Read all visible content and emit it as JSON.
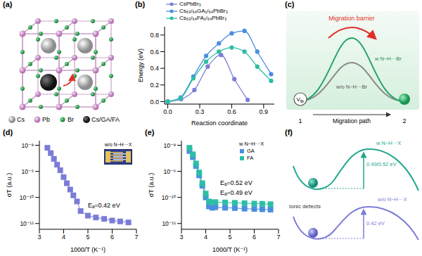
{
  "figure_a": {
    "panel_label": "(a)",
    "atoms": [
      "Cs",
      "Pb",
      "Br",
      "Cs/GA/FA"
    ]
  },
  "chart_data": [
    {
      "panel_label": "(b)",
      "type": "line",
      "x_label": "Reaction coordinate",
      "y_label": "Energy (eV)",
      "xlim": [
        -0.03,
        1.0
      ],
      "xticks": [
        {
          "value": 0,
          "label": "0.0"
        },
        0.3,
        0.6,
        0.9
      ],
      "ylim": [
        -0.03,
        0.9
      ],
      "yticks": [
        {
          "value": 0,
          "label": "0.0"
        },
        0.2,
        0.4,
        0.6,
        0.8
      ],
      "legend": "top",
      "marker": "circle",
      "series": [
        {
          "name": "CsPbBr₃",
          "color": "#7b7cd8",
          "x": [
            0,
            0.125,
            0.25,
            0.375,
            0.5,
            0.625,
            0.75
          ],
          "values": [
            0,
            0.03,
            0.14,
            0.42,
            0.56,
            0.27,
            0.02
          ]
        },
        {
          "name": "Cs₆₃/₆₄GA₁/₆₄PbBr₃",
          "color": "#4b8ee0",
          "x": [
            0,
            0.12,
            0.24,
            0.36,
            0.48,
            0.6,
            0.72,
            0.84,
            0.97
          ],
          "values": [
            0,
            0.05,
            0.3,
            0.55,
            0.7,
            0.82,
            0.85,
            0.6,
            0.33
          ]
        },
        {
          "name": "Cs₆₃/₆₄FA₁/₆₄PbBr₃",
          "color": "#2cbfa5",
          "x": [
            0,
            0.12,
            0.24,
            0.36,
            0.48,
            0.6,
            0.72,
            0.84,
            0.97
          ],
          "values": [
            0,
            0.04,
            0.28,
            0.48,
            0.6,
            0.65,
            0.6,
            0.42,
            0.25
          ]
        }
      ]
    },
    {
      "panel_label": "(d)",
      "type": "scatter",
      "marker": "square",
      "line_style": "solid",
      "log": "y",
      "x_label": "1000/T (K⁻¹)",
      "y_label": "σT (a.u.)",
      "xlim": [
        3,
        7
      ],
      "xticks": [
        3,
        4,
        5,
        6,
        7
      ],
      "ylim": [
        6e-12,
        1.5e-08
      ],
      "yticks": [
        {
          "value": 1e-11,
          "label": "10⁻¹¹"
        },
        {
          "value": 1e-10,
          "label": "10⁻¹⁰"
        },
        {
          "value": 1e-09,
          "label": "10⁻⁹"
        },
        {
          "value": 1e-08,
          "label": "10⁻⁸"
        }
      ],
      "inset_label": "w/o N−H···X",
      "annotations": [
        "Eₐ=0.42 eV"
      ],
      "series": [
        {
          "color": "#7b7cd8",
          "x": [
            3.33,
            3.47,
            3.6,
            3.73,
            3.86,
            4.0,
            4.13,
            4.27,
            4.4,
            4.55,
            4.7,
            5.0,
            5.33,
            5.67,
            6.0,
            6.33,
            6.67
          ],
          "values": [
            8e-09,
            5e-09,
            3e-09,
            1.8e-09,
            1.1e-09,
            6e-10,
            3.5e-10,
            2e-10,
            1.2e-10,
            7e-11,
            3e-11,
            2e-11,
            1.7e-11,
            1.5e-11,
            1.3e-11,
            1.2e-11,
            1.1e-11
          ]
        }
      ]
    },
    {
      "panel_label": "(e)",
      "type": "scatter",
      "marker": "square",
      "line_style": "solid",
      "log": "y",
      "x_label": "1000/T (K⁻¹)",
      "y_label": "σT (a.u.)",
      "xlim": [
        3,
        7
      ],
      "xticks": [
        3,
        4,
        5,
        6,
        7
      ],
      "ylim": [
        6e-12,
        1.5e-08
      ],
      "yticks": [
        {
          "value": 1e-11,
          "label": "10⁻¹¹"
        },
        {
          "value": 1e-10,
          "label": "10⁻¹⁰"
        },
        {
          "value": 1e-09,
          "label": "10⁻⁹"
        },
        {
          "value": 1e-08,
          "label": "10⁻⁸"
        }
      ],
      "legend": "upper right",
      "legend_title": "w N−H···X",
      "annotations": [
        "Eₐ=0.52 eV",
        "Eₐ=0.49 eV"
      ],
      "series": [
        {
          "name": "GA",
          "color": "#4b8ee0",
          "x": [
            3.33,
            3.47,
            3.6,
            3.73,
            3.86,
            4.0,
            4.13,
            4.27,
            4.4,
            4.8,
            5.2,
            5.6,
            6.0,
            6.33,
            6.67
          ],
          "values": [
            6e-09,
            3.5e-09,
            1.6e-09,
            7e-10,
            2.8e-10,
            1e-10,
            4.5e-11,
            4e-11,
            4.2e-11,
            4e-11,
            3.9e-11,
            3.7e-11,
            3.6e-11,
            3.5e-11,
            3.4e-11
          ]
        },
        {
          "name": "FA",
          "color": "#2cbfa5",
          "x": [
            3.33,
            3.47,
            3.6,
            3.73,
            3.86,
            4.0,
            4.13,
            4.27,
            4.4,
            4.8,
            5.2,
            5.6,
            6.0,
            6.33,
            6.67
          ],
          "values": [
            8e-09,
            4.5e-09,
            2e-09,
            9e-10,
            3.5e-10,
            1.4e-10,
            7e-11,
            6.5e-11,
            6.6e-11,
            6.4e-11,
            6.2e-11,
            6e-11,
            5.8e-11,
            5.7e-11,
            5.5e-11
          ]
        }
      ]
    }
  ],
  "diagram_c": {
    "panel_label": "(c)",
    "title": "Migration barrier",
    "curve_labels": [
      "w N−H···Br",
      "w/o N−H···Br"
    ],
    "defect": "V",
    "defect_subscript": "Br",
    "path_start": "1",
    "path_label": "Migration path",
    "path_end": "2"
  },
  "diagram_f": {
    "panel_label": "(f)",
    "curve_labels": [
      "w N−H···X",
      "w/o N−H···X"
    ],
    "defect_label": "Ionic defects",
    "barriers": [
      "0.49/0.52 eV",
      "0.42 eV"
    ]
  }
}
